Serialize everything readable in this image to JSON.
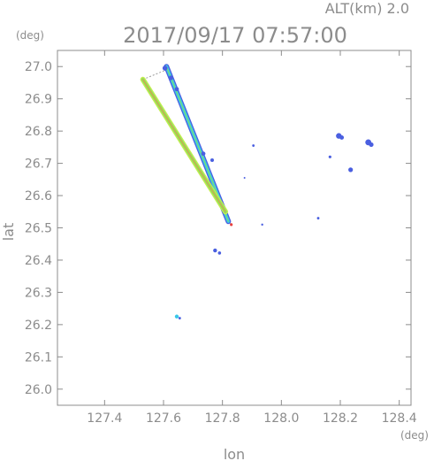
{
  "header": {
    "alt_label": "ALT(km)  2.0",
    "datetime": "2017/09/17  07:57:00"
  },
  "chart_data": {
    "type": "scatter",
    "title": "2017/09/17  07:57:00",
    "subtitle": "ALT(km)  2.0",
    "xlabel": "lon",
    "ylabel": "lat",
    "x_unit": "(deg)",
    "y_unit": "(deg)",
    "xlim": [
      127.24,
      128.44
    ],
    "ylim": [
      25.95,
      27.05
    ],
    "x_ticks": [
      127.4,
      127.6,
      127.8,
      128.0,
      128.2,
      128.4
    ],
    "x_tick_labels": [
      "127.4",
      "127.6",
      "127.8",
      "128.0",
      "128.2",
      "128.4"
    ],
    "y_ticks": [
      26.0,
      26.1,
      26.2,
      26.3,
      26.4,
      26.5,
      26.6,
      26.7,
      26.8,
      26.9,
      27.0
    ],
    "y_tick_labels": [
      "26.0",
      "26.1",
      "26.2",
      "26.3",
      "26.4",
      "26.5",
      "26.6",
      "26.7",
      "26.8",
      "26.9",
      "27.0"
    ],
    "grid": false,
    "colors": {
      "axis": "#8c8c8c",
      "wedge_outline": "#a0a0a0",
      "blue": "#4a5fe0",
      "cyan": "#38c8e8",
      "green": "#8ce060",
      "yellowgreen": "#c6ec50",
      "orange": "#e89a40",
      "red": "#e84040"
    },
    "scan_origin": {
      "lon": 127.83,
      "lat": 26.51
    },
    "scan_wedge": [
      {
        "lon": 127.53,
        "lat": 26.96
      },
      {
        "lon": 127.61,
        "lat": 26.99
      }
    ],
    "beams": [
      {
        "name": "east-beam",
        "from": {
          "lon": 127.61,
          "lat": 27.0
        },
        "to": {
          "lon": 127.82,
          "lat": 26.52
        },
        "inner_color": "#38c8e8",
        "outer_color": "#4a5fe0",
        "core_color": "#8ce060"
      },
      {
        "name": "west-beam",
        "from": {
          "lon": 127.53,
          "lat": 26.96
        },
        "to": {
          "lon": 127.81,
          "lat": 26.55
        },
        "inner_color": "#8ce060",
        "outer_color": "#c6ec50",
        "core_color": "#e89a40"
      }
    ],
    "echoes": [
      {
        "lon": 128.195,
        "lat": 26.785,
        "size": 3.2,
        "color": "#4a5fe0"
      },
      {
        "lon": 128.205,
        "lat": 26.78,
        "size": 2.4,
        "color": "#4a5fe0"
      },
      {
        "lon": 128.295,
        "lat": 26.765,
        "size": 3.4,
        "color": "#4a5fe0"
      },
      {
        "lon": 128.305,
        "lat": 26.758,
        "size": 2.6,
        "color": "#4a5fe0"
      },
      {
        "lon": 128.235,
        "lat": 26.68,
        "size": 2.6,
        "color": "#4a5fe0"
      },
      {
        "lon": 128.165,
        "lat": 26.72,
        "size": 1.6,
        "color": "#4a5fe0"
      },
      {
        "lon": 127.905,
        "lat": 26.755,
        "size": 1.4,
        "color": "#4a5fe0"
      },
      {
        "lon": 127.765,
        "lat": 26.71,
        "size": 2.0,
        "color": "#4a5fe0"
      },
      {
        "lon": 127.875,
        "lat": 26.655,
        "size": 1.0,
        "color": "#4a5fe0"
      },
      {
        "lon": 128.125,
        "lat": 26.53,
        "size": 1.4,
        "color": "#4a5fe0"
      },
      {
        "lon": 127.935,
        "lat": 26.51,
        "size": 1.2,
        "color": "#4a5fe0"
      },
      {
        "lon": 127.775,
        "lat": 26.43,
        "size": 2.2,
        "color": "#4a5fe0"
      },
      {
        "lon": 127.79,
        "lat": 26.422,
        "size": 1.8,
        "color": "#4a5fe0"
      },
      {
        "lon": 127.645,
        "lat": 26.225,
        "size": 2.2,
        "color": "#38c8e8"
      },
      {
        "lon": 127.655,
        "lat": 26.22,
        "size": 1.4,
        "color": "#4a5fe0"
      },
      {
        "lon": 127.605,
        "lat": 26.995,
        "size": 2.8,
        "color": "#4a5fe0"
      },
      {
        "lon": 127.625,
        "lat": 26.965,
        "size": 2.6,
        "color": "#4a5fe0"
      },
      {
        "lon": 127.645,
        "lat": 26.93,
        "size": 2.4,
        "color": "#4a5fe0"
      },
      {
        "lon": 127.735,
        "lat": 26.73,
        "size": 2.4,
        "color": "#4a5fe0"
      }
    ]
  }
}
